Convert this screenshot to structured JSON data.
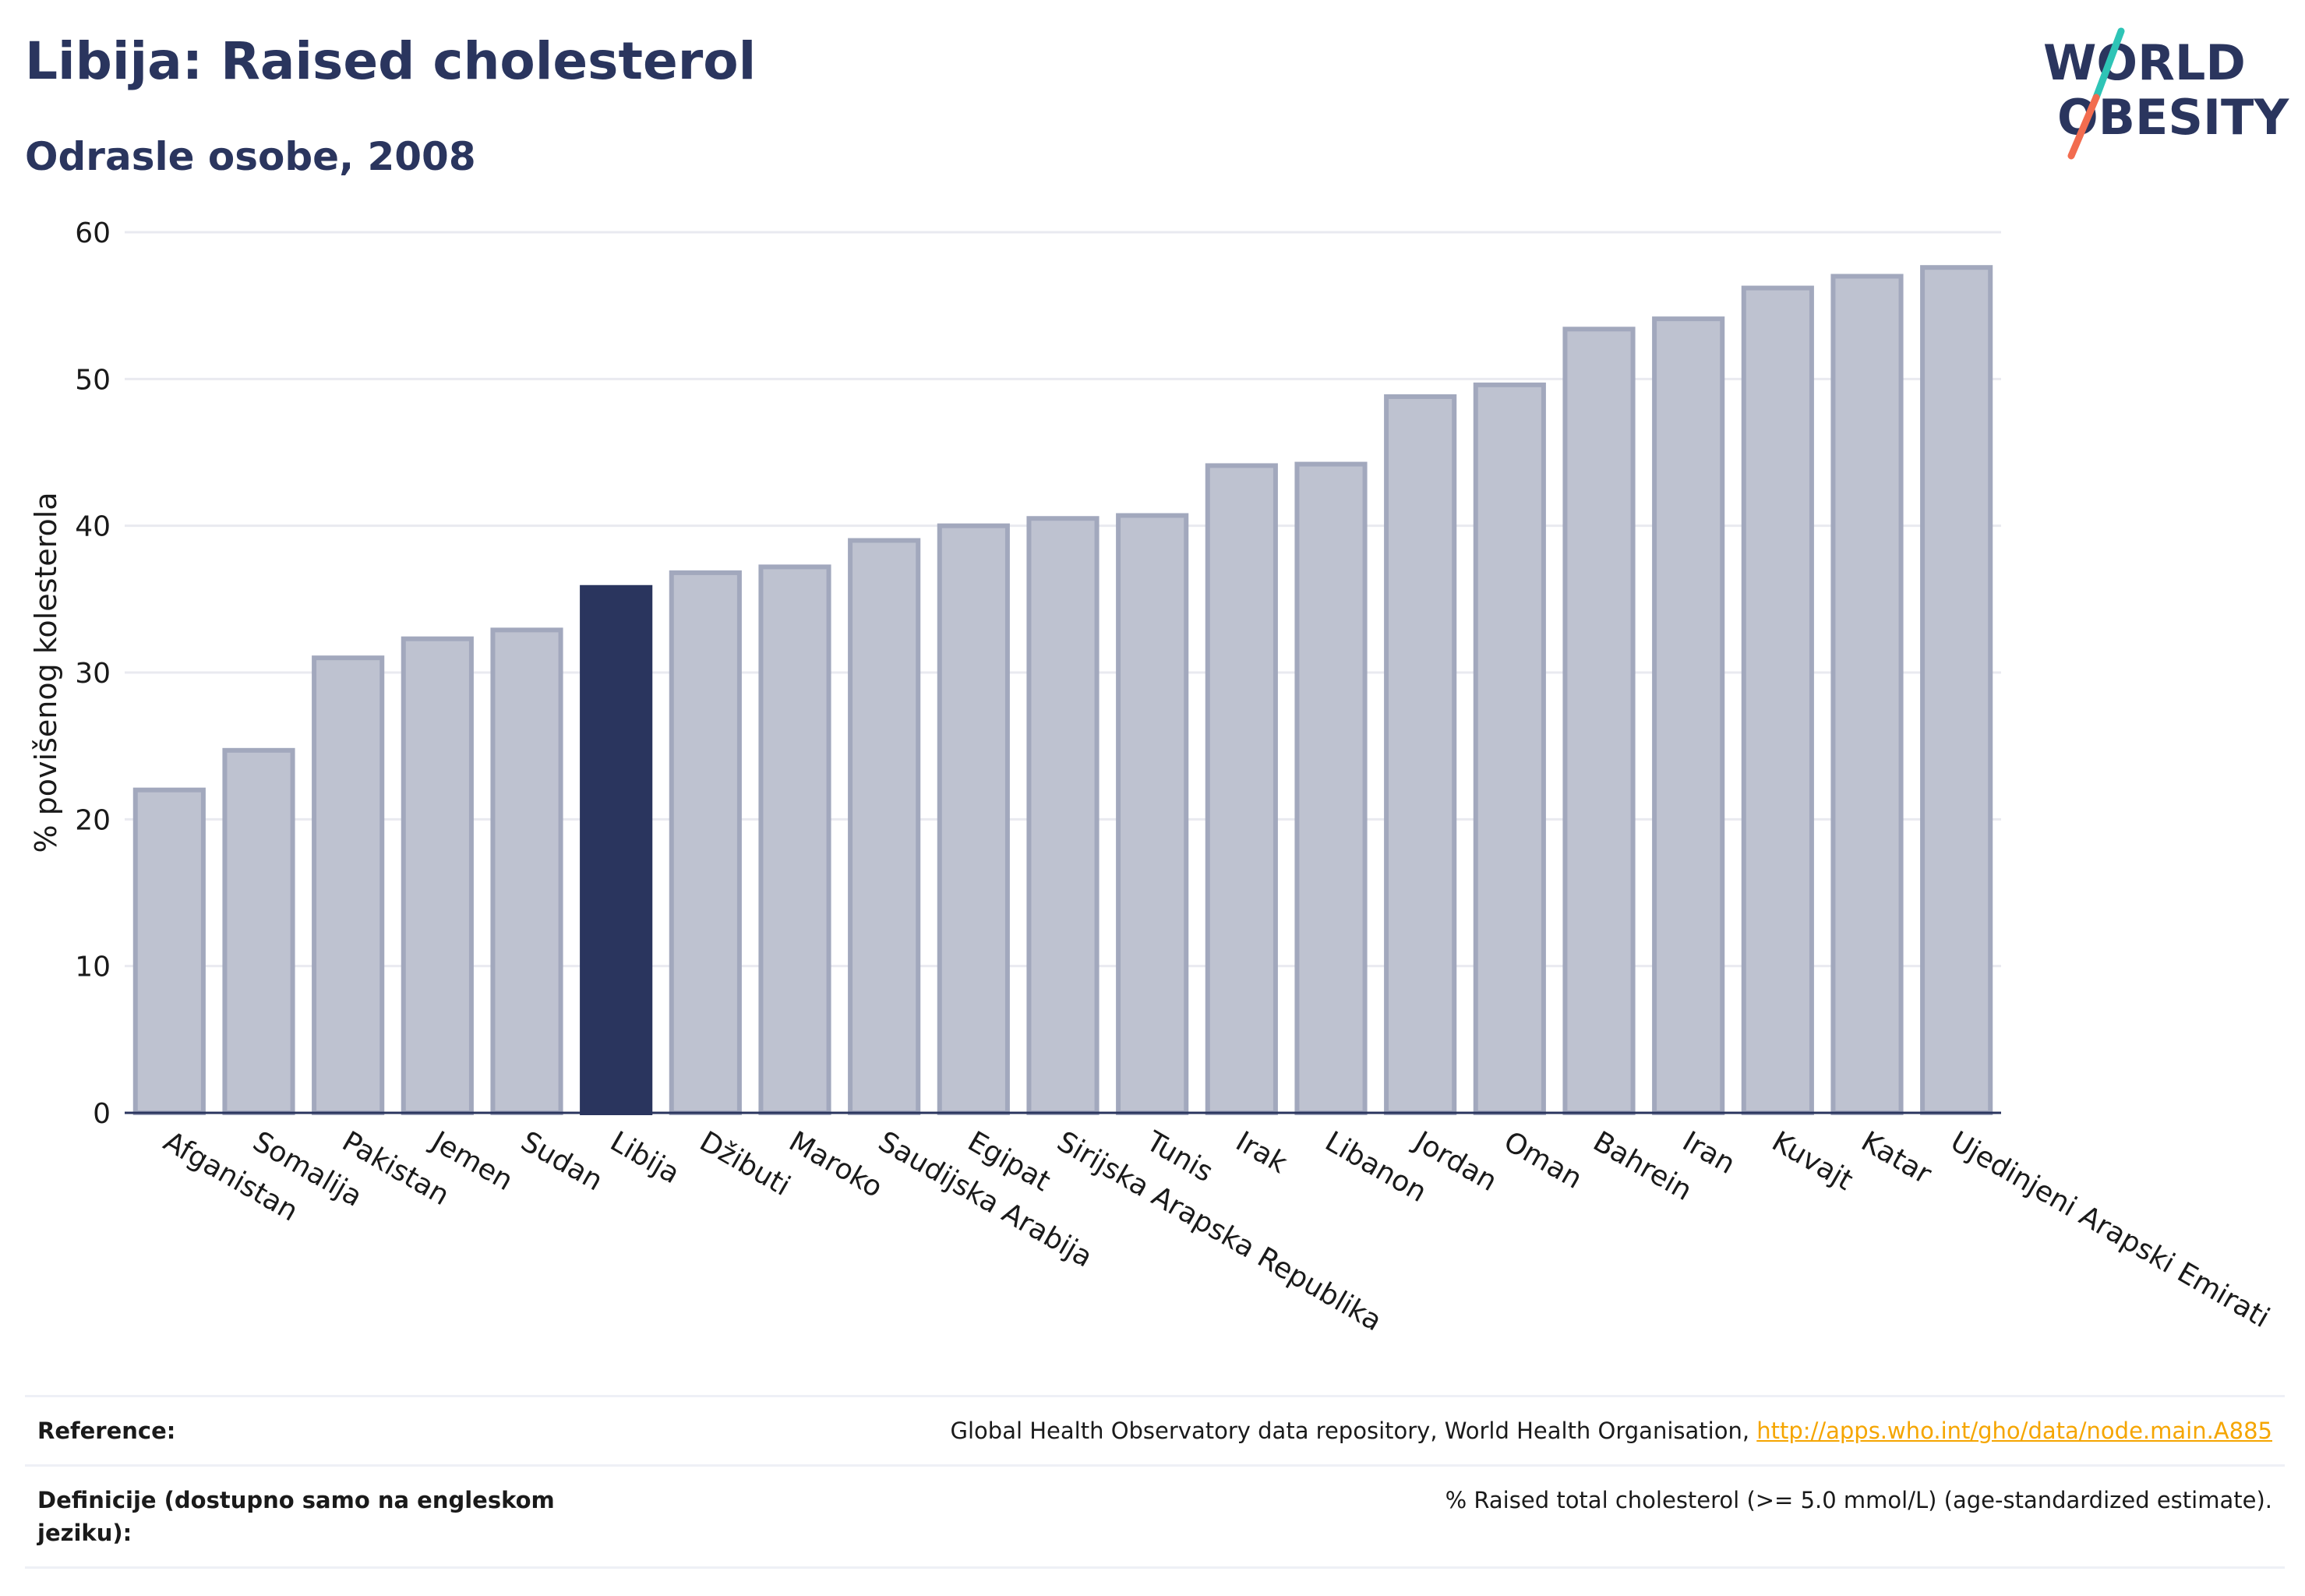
{
  "header": {
    "title": "Libija: Raised cholesterol",
    "subtitle": "Odrasle osobe, 2008"
  },
  "logo": {
    "line1": "WORLD",
    "line2": "OBESITY",
    "accent_colors": [
      "#2ec4b6",
      "#f26c4f"
    ]
  },
  "chart_data": {
    "type": "bar",
    "ylabel": "% povišenog kolesterola",
    "ylim": [
      0,
      60
    ],
    "yticks": [
      0,
      10,
      20,
      30,
      40,
      50,
      60
    ],
    "grid": true,
    "highlight_category": "Libija",
    "colors": {
      "bar": "#bec2d0",
      "bar_edge": "#a2a8bd",
      "highlight": "#2a355e",
      "grid": "#e9eaf0",
      "axis": "#2a355e"
    },
    "categories": [
      "Afganistan",
      "Somalija",
      "Pakistan",
      "Jemen",
      "Sudan",
      "Libija",
      "Džibuti",
      "Maroko",
      "Saudijska Arabija",
      "Egipat",
      "Sirijska Arapska Republika",
      "Tunis",
      "Irak",
      "Libanon",
      "Jordan",
      "Oman",
      "Bahrein",
      "Iran",
      "Kuvajt",
      "Katar",
      "Ujedinjeni Arapski Emirati"
    ],
    "values": [
      22.0,
      24.7,
      31.0,
      32.3,
      32.9,
      35.8,
      36.8,
      37.2,
      39.0,
      40.0,
      40.5,
      40.7,
      44.1,
      44.2,
      48.8,
      49.6,
      53.4,
      54.1,
      56.2,
      57.0,
      57.6
    ]
  },
  "references": {
    "reference_label": "Reference:",
    "reference_text": "Global Health Observatory data repository, World Health Organisation, ",
    "reference_link": "http://apps.who.int/gho/data/node.main.A885",
    "definition_label": "Definicije (dostupno samo na engleskom jeziku):",
    "definition_text": "% Raised total cholesterol (>= 5.0 mmol/L) (age-standardized estimate)."
  }
}
